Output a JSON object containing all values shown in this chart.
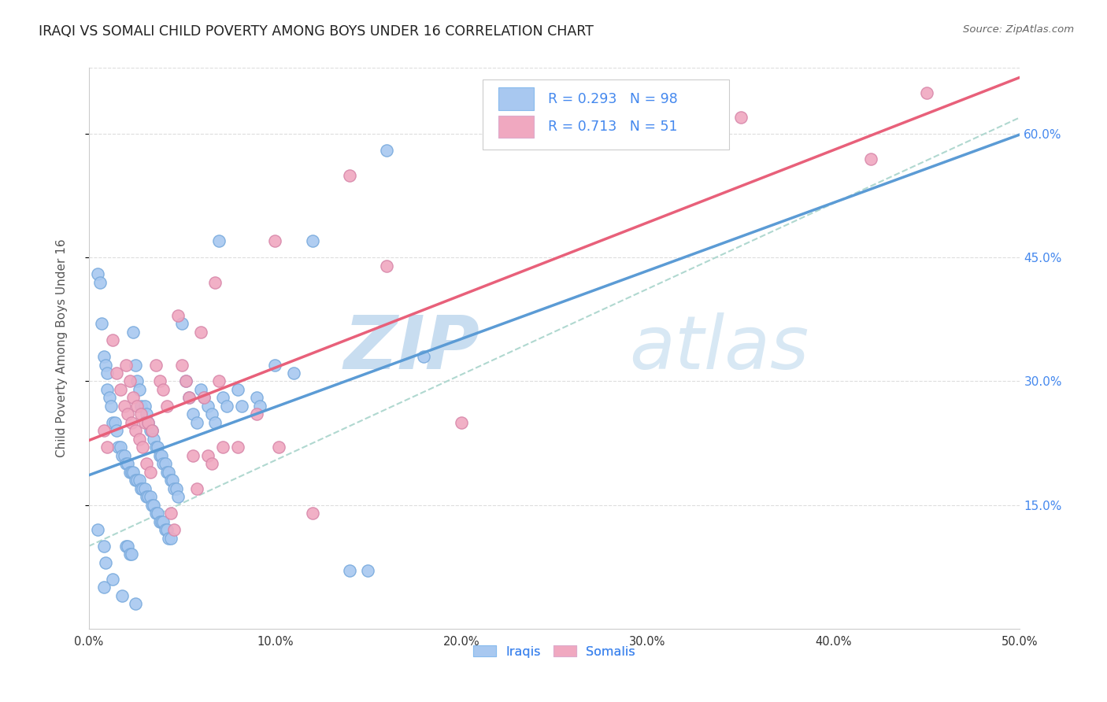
{
  "title": "IRAQI VS SOMALI CHILD POVERTY AMONG BOYS UNDER 16 CORRELATION CHART",
  "source": "Source: ZipAtlas.com",
  "ylabel": "Child Poverty Among Boys Under 16",
  "xlim": [
    0.0,
    0.5
  ],
  "ylim": [
    0.0,
    0.68
  ],
  "xtick_labels": [
    "0.0%",
    "",
    "10.0%",
    "",
    "20.0%",
    "",
    "30.0%",
    "",
    "40.0%",
    "",
    "50.0%"
  ],
  "xtick_vals": [
    0.0,
    0.05,
    0.1,
    0.15,
    0.2,
    0.25,
    0.3,
    0.35,
    0.4,
    0.45,
    0.5
  ],
  "ytick_vals": [
    0.15,
    0.3,
    0.45,
    0.6
  ],
  "ytick_labels": [
    "15.0%",
    "30.0%",
    "45.0%",
    "60.0%"
  ],
  "iraqis_R": "0.293",
  "iraqis_N": "98",
  "somalis_R": "0.713",
  "somalis_N": "51",
  "iraqi_color": "#a8c8f0",
  "somali_color": "#f0a8c0",
  "iraqi_line_color": "#5b9bd5",
  "somali_line_color": "#e8607a",
  "dashed_line_color": "#b0d8d0",
  "watermark_zip": "ZIP",
  "watermark_atlas": "atlas",
  "watermark_color": "#d8e8f8",
  "background_color": "#ffffff",
  "grid_color": "#dddddd",
  "right_tick_color": "#4488ee",
  "iraqi_scatter": [
    [
      0.005,
      0.12
    ],
    [
      0.008,
      0.1
    ],
    [
      0.009,
      0.08
    ],
    [
      0.005,
      0.43
    ],
    [
      0.006,
      0.42
    ],
    [
      0.007,
      0.37
    ],
    [
      0.008,
      0.33
    ],
    [
      0.009,
      0.32
    ],
    [
      0.01,
      0.31
    ],
    [
      0.01,
      0.29
    ],
    [
      0.011,
      0.28
    ],
    [
      0.012,
      0.27
    ],
    [
      0.013,
      0.25
    ],
    [
      0.014,
      0.25
    ],
    [
      0.015,
      0.24
    ],
    [
      0.016,
      0.22
    ],
    [
      0.017,
      0.22
    ],
    [
      0.018,
      0.21
    ],
    [
      0.019,
      0.21
    ],
    [
      0.02,
      0.2
    ],
    [
      0.021,
      0.2
    ],
    [
      0.022,
      0.19
    ],
    [
      0.023,
      0.19
    ],
    [
      0.024,
      0.19
    ],
    [
      0.025,
      0.18
    ],
    [
      0.026,
      0.18
    ],
    [
      0.027,
      0.18
    ],
    [
      0.028,
      0.17
    ],
    [
      0.029,
      0.17
    ],
    [
      0.03,
      0.17
    ],
    [
      0.031,
      0.16
    ],
    [
      0.032,
      0.16
    ],
    [
      0.033,
      0.16
    ],
    [
      0.034,
      0.15
    ],
    [
      0.035,
      0.15
    ],
    [
      0.036,
      0.14
    ],
    [
      0.037,
      0.14
    ],
    [
      0.038,
      0.13
    ],
    [
      0.039,
      0.13
    ],
    [
      0.04,
      0.13
    ],
    [
      0.041,
      0.12
    ],
    [
      0.042,
      0.12
    ],
    [
      0.043,
      0.11
    ],
    [
      0.044,
      0.11
    ],
    [
      0.02,
      0.1
    ],
    [
      0.021,
      0.1
    ],
    [
      0.022,
      0.09
    ],
    [
      0.023,
      0.09
    ],
    [
      0.024,
      0.36
    ],
    [
      0.025,
      0.32
    ],
    [
      0.026,
      0.3
    ],
    [
      0.027,
      0.29
    ],
    [
      0.028,
      0.27
    ],
    [
      0.03,
      0.27
    ],
    [
      0.031,
      0.26
    ],
    [
      0.032,
      0.25
    ],
    [
      0.033,
      0.24
    ],
    [
      0.034,
      0.24
    ],
    [
      0.035,
      0.23
    ],
    [
      0.036,
      0.22
    ],
    [
      0.037,
      0.22
    ],
    [
      0.038,
      0.21
    ],
    [
      0.039,
      0.21
    ],
    [
      0.04,
      0.2
    ],
    [
      0.041,
      0.2
    ],
    [
      0.042,
      0.19
    ],
    [
      0.043,
      0.19
    ],
    [
      0.044,
      0.18
    ],
    [
      0.045,
      0.18
    ],
    [
      0.046,
      0.17
    ],
    [
      0.047,
      0.17
    ],
    [
      0.048,
      0.16
    ],
    [
      0.05,
      0.37
    ],
    [
      0.052,
      0.3
    ],
    [
      0.054,
      0.28
    ],
    [
      0.056,
      0.26
    ],
    [
      0.058,
      0.25
    ],
    [
      0.06,
      0.29
    ],
    [
      0.062,
      0.28
    ],
    [
      0.064,
      0.27
    ],
    [
      0.066,
      0.26
    ],
    [
      0.068,
      0.25
    ],
    [
      0.07,
      0.47
    ],
    [
      0.072,
      0.28
    ],
    [
      0.074,
      0.27
    ],
    [
      0.08,
      0.29
    ],
    [
      0.082,
      0.27
    ],
    [
      0.09,
      0.28
    ],
    [
      0.092,
      0.27
    ],
    [
      0.1,
      0.32
    ],
    [
      0.11,
      0.31
    ],
    [
      0.12,
      0.47
    ],
    [
      0.15,
      0.07
    ],
    [
      0.16,
      0.58
    ],
    [
      0.18,
      0.33
    ],
    [
      0.013,
      0.06
    ],
    [
      0.008,
      0.05
    ],
    [
      0.14,
      0.07
    ],
    [
      0.018,
      0.04
    ],
    [
      0.025,
      0.03
    ]
  ],
  "somali_scatter": [
    [
      0.008,
      0.24
    ],
    [
      0.01,
      0.22
    ],
    [
      0.013,
      0.35
    ],
    [
      0.015,
      0.31
    ],
    [
      0.017,
      0.29
    ],
    [
      0.019,
      0.27
    ],
    [
      0.021,
      0.26
    ],
    [
      0.023,
      0.25
    ],
    [
      0.025,
      0.24
    ],
    [
      0.027,
      0.23
    ],
    [
      0.029,
      0.22
    ],
    [
      0.031,
      0.2
    ],
    [
      0.033,
      0.19
    ],
    [
      0.02,
      0.32
    ],
    [
      0.022,
      0.3
    ],
    [
      0.024,
      0.28
    ],
    [
      0.026,
      0.27
    ],
    [
      0.028,
      0.26
    ],
    [
      0.03,
      0.25
    ],
    [
      0.032,
      0.25
    ],
    [
      0.034,
      0.24
    ],
    [
      0.036,
      0.32
    ],
    [
      0.038,
      0.3
    ],
    [
      0.04,
      0.29
    ],
    [
      0.042,
      0.27
    ],
    [
      0.044,
      0.14
    ],
    [
      0.046,
      0.12
    ],
    [
      0.048,
      0.38
    ],
    [
      0.05,
      0.32
    ],
    [
      0.052,
      0.3
    ],
    [
      0.054,
      0.28
    ],
    [
      0.056,
      0.21
    ],
    [
      0.058,
      0.17
    ],
    [
      0.06,
      0.36
    ],
    [
      0.062,
      0.28
    ],
    [
      0.064,
      0.21
    ],
    [
      0.066,
      0.2
    ],
    [
      0.068,
      0.42
    ],
    [
      0.07,
      0.3
    ],
    [
      0.072,
      0.22
    ],
    [
      0.08,
      0.22
    ],
    [
      0.09,
      0.26
    ],
    [
      0.1,
      0.47
    ],
    [
      0.102,
      0.22
    ],
    [
      0.12,
      0.14
    ],
    [
      0.14,
      0.55
    ],
    [
      0.16,
      0.44
    ],
    [
      0.2,
      0.25
    ],
    [
      0.35,
      0.62
    ],
    [
      0.42,
      0.57
    ],
    [
      0.45,
      0.65
    ]
  ]
}
